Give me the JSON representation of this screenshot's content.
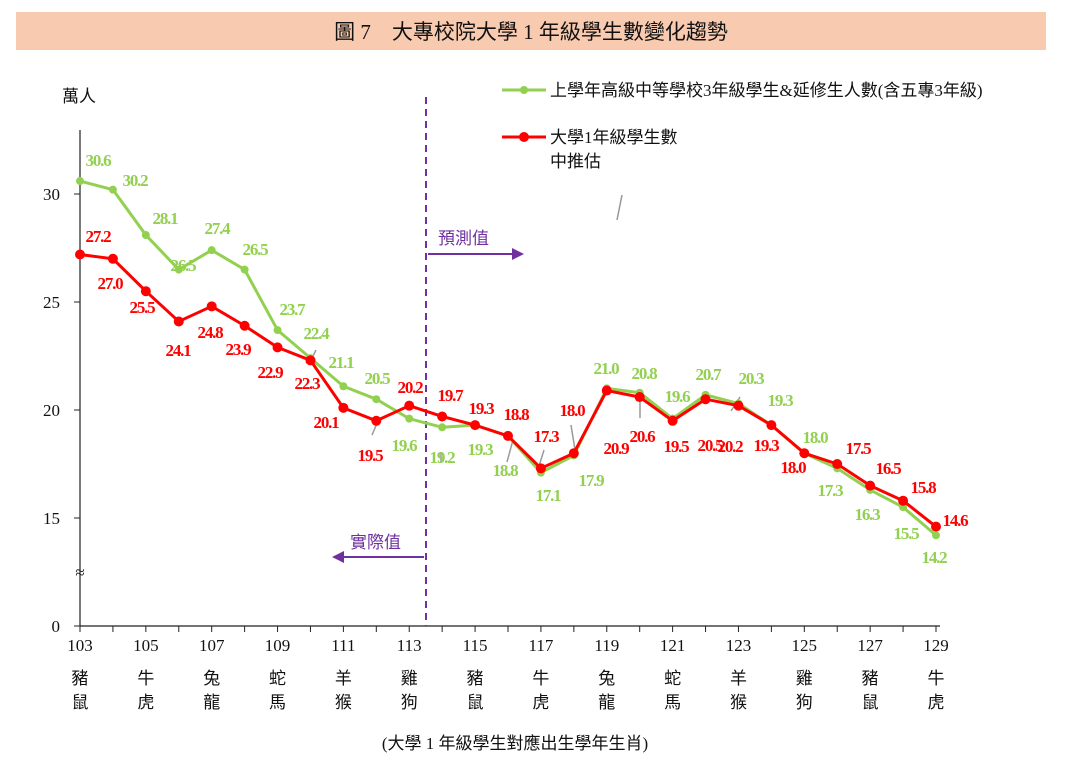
{
  "title": "圖 7　大專校院大學 1 年級學生數變化趨勢",
  "chart_data": {
    "type": "line",
    "title": "圖 7　大專校院大學 1 年級學生數變化趨勢",
    "ylabel": "萬人",
    "xlabel": "(大學 1 年級學生對應出生學年生肖)",
    "ylim": [
      0,
      33
    ],
    "y_axis_break": "between 0 and 15",
    "yticks": [
      "0",
      "15",
      "20",
      "25",
      "30"
    ],
    "grid": false,
    "legend_position": "top-right",
    "x": [
      103,
      104,
      105,
      106,
      107,
      108,
      109,
      110,
      111,
      112,
      113,
      114,
      115,
      116,
      117,
      118,
      119,
      120,
      121,
      122,
      123,
      124,
      125,
      126,
      127,
      128,
      129
    ],
    "xtick_labels": [
      {
        "year": "103",
        "zodiac1": "豬",
        "zodiac2": "鼠"
      },
      {
        "year": "105",
        "zodiac1": "牛",
        "zodiac2": "虎"
      },
      {
        "year": "107",
        "zodiac1": "兔",
        "zodiac2": "龍"
      },
      {
        "year": "109",
        "zodiac1": "蛇",
        "zodiac2": "馬"
      },
      {
        "year": "111",
        "zodiac1": "羊",
        "zodiac2": "猴"
      },
      {
        "year": "113",
        "zodiac1": "雞",
        "zodiac2": "狗"
      },
      {
        "year": "115",
        "zodiac1": "豬",
        "zodiac2": "鼠"
      },
      {
        "year": "117",
        "zodiac1": "牛",
        "zodiac2": "虎"
      },
      {
        "year": "119",
        "zodiac1": "兔",
        "zodiac2": "龍"
      },
      {
        "year": "121",
        "zodiac1": "蛇",
        "zodiac2": "馬"
      },
      {
        "year": "123",
        "zodiac1": "羊",
        "zodiac2": "猴"
      },
      {
        "year": "125",
        "zodiac1": "雞",
        "zodiac2": "狗"
      },
      {
        "year": "127",
        "zodiac1": "豬",
        "zodiac2": "鼠"
      },
      {
        "year": "129",
        "zodiac1": "牛",
        "zodiac2": "虎"
      }
    ],
    "series": [
      {
        "name": "上學年高級中等學校3年級學生&延修生人數(含五專3年級)",
        "color": "#92d050",
        "values": [
          30.6,
          30.2,
          28.1,
          26.5,
          27.4,
          26.5,
          23.7,
          22.4,
          21.1,
          20.5,
          19.6,
          19.2,
          19.3,
          18.8,
          17.1,
          17.9,
          21.0,
          20.8,
          19.6,
          20.7,
          20.3,
          19.3,
          18.0,
          17.3,
          16.3,
          15.5,
          14.2
        ]
      },
      {
        "name": "大學1年級學生數\n中推估",
        "name_line1": "大學1年級學生數",
        "name_line2": "中推估",
        "color": "#ff0000",
        "values": [
          27.2,
          27.0,
          25.5,
          24.1,
          24.8,
          23.9,
          22.9,
          22.3,
          20.1,
          19.5,
          20.2,
          19.7,
          19.3,
          18.8,
          17.3,
          18.0,
          20.9,
          20.6,
          19.5,
          20.5,
          20.2,
          19.3,
          18.0,
          17.5,
          16.5,
          15.8,
          14.6
        ]
      }
    ],
    "annotations": {
      "forecast": "預測值",
      "actual": "實際值",
      "divider_between": [
        113,
        114
      ],
      "divider_color": "#7030a0"
    }
  }
}
